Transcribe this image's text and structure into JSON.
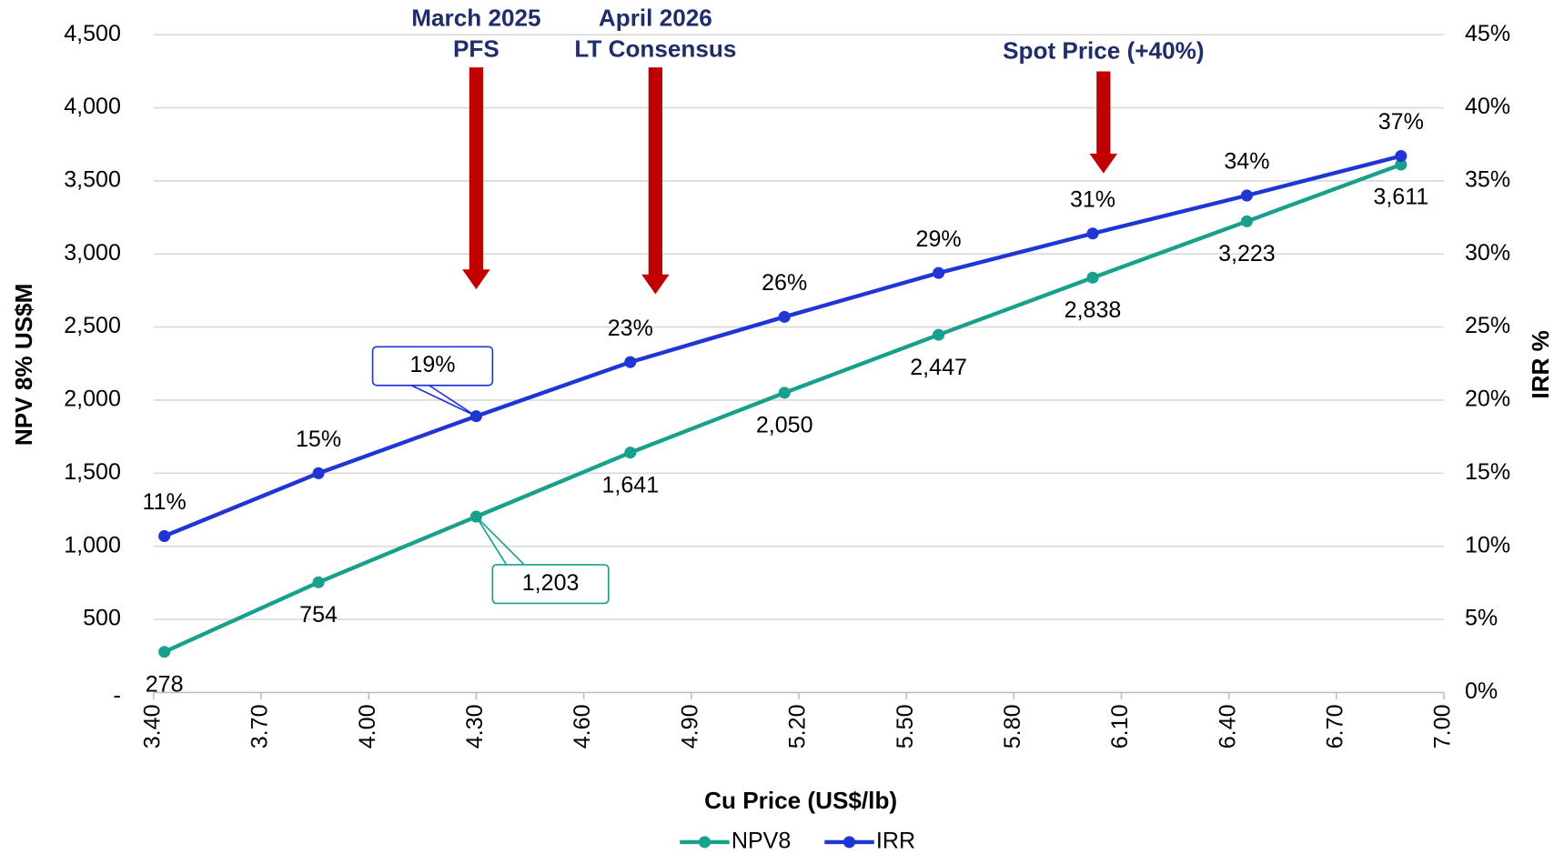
{
  "chart_data": {
    "type": "line",
    "x_label": "Cu Price (US$/lb)",
    "y_label": "NPV 8% US$M",
    "y2_label": "IRR %",
    "x": [
      3.43,
      3.86,
      4.3,
      4.73,
      5.16,
      5.59,
      6.02,
      6.45,
      6.88
    ],
    "series": [
      {
        "name": "NPV8",
        "color": "#17a08b",
        "values": [
          278,
          754,
          1203,
          1641,
          2050,
          2447,
          2838,
          3223,
          3611
        ],
        "value_labels": [
          "278",
          "754",
          "1,203",
          "1,641",
          "2,050",
          "2,447",
          "2,838",
          "3,223",
          "3,611"
        ]
      },
      {
        "name": "IRR",
        "color": "#1f35d6",
        "axis": "y2",
        "values": [
          10.7,
          15.0,
          18.9,
          22.6,
          25.7,
          28.7,
          31.4,
          34.0,
          36.7
        ],
        "value_labels": [
          "11%",
          "15%",
          "19%",
          "23%",
          "26%",
          "29%",
          "31%",
          "34%",
          "37%"
        ]
      }
    ],
    "xlim": [
      3.4,
      7.0
    ],
    "xticks": [
      {
        "value": 3.4,
        "label": "3.40"
      },
      {
        "value": 3.7,
        "label": "3.70"
      },
      {
        "value": 4.0,
        "label": "4.00"
      },
      {
        "value": 4.3,
        "label": "4.30"
      },
      {
        "value": 4.6,
        "label": "4.60"
      },
      {
        "value": 4.9,
        "label": "4.90"
      },
      {
        "value": 5.2,
        "label": "5.20"
      },
      {
        "value": 5.5,
        "label": "5.50"
      },
      {
        "value": 5.8,
        "label": "5.80"
      },
      {
        "value": 6.1,
        "label": "6.10"
      },
      {
        "value": 6.4,
        "label": "6.40"
      },
      {
        "value": 6.7,
        "label": "6.70"
      },
      {
        "value": 7.0,
        "label": "7.00"
      }
    ],
    "ylim": [
      0,
      4500
    ],
    "yticks": [
      {
        "value": 0,
        "label": "-"
      },
      500,
      {
        "value": 1000,
        "label": "1,000"
      },
      {
        "value": 1500,
        "label": "1,500"
      },
      {
        "value": 2000,
        "label": "2,000"
      },
      {
        "value": 2500,
        "label": "2,500"
      },
      {
        "value": 3000,
        "label": "3,000"
      },
      {
        "value": 3500,
        "label": "3,500"
      },
      {
        "value": 4000,
        "label": "4,000"
      },
      {
        "value": 4500,
        "label": "4,500"
      }
    ],
    "y2lim": [
      0,
      45
    ],
    "y2ticks": [
      {
        "value": 0,
        "label": "0%"
      },
      {
        "value": 5,
        "label": "5%"
      },
      {
        "value": 10,
        "label": "10%"
      },
      {
        "value": 15,
        "label": "15%"
      },
      {
        "value": 20,
        "label": "20%"
      },
      {
        "value": 25,
        "label": "25%"
      },
      {
        "value": 30,
        "label": "30%"
      },
      {
        "value": 35,
        "label": "35%"
      },
      {
        "value": 40,
        "label": "40%"
      },
      {
        "value": 45,
        "label": "45%"
      }
    ],
    "grid": true,
    "legend": "bottom",
    "annotations": [
      {
        "text": [
          "March 2025",
          "PFS"
        ],
        "x": 4.3
      },
      {
        "text": [
          "April 2026",
          "LT Consensus"
        ],
        "x": 4.8
      },
      {
        "text": [
          "Spot Price (+40%)"
        ],
        "x": 6.05
      }
    ],
    "annotation_color": "#c00000"
  }
}
